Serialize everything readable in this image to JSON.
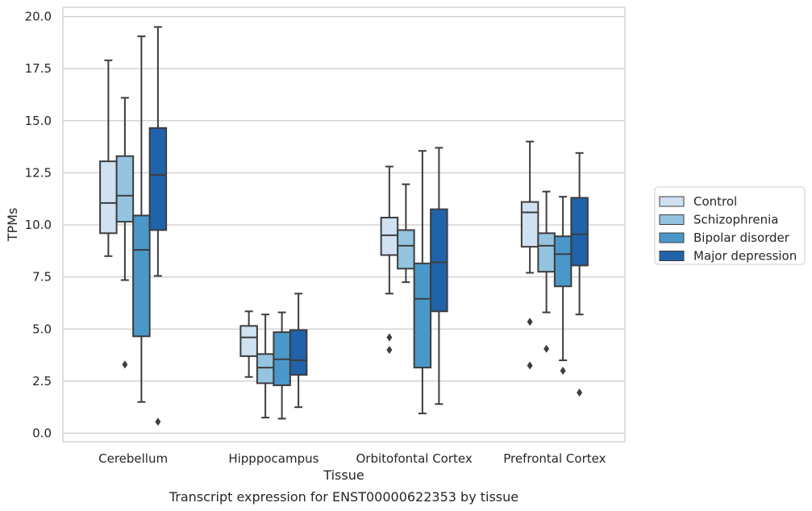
{
  "caption": "Transcript expression for ENST00000622353 by tissue",
  "chart_data": {
    "type": "box",
    "xlabel": "Tissue",
    "ylabel": "TPMs",
    "ylim": [
      -0.4,
      20.4
    ],
    "yticks": [
      "0.0",
      "2.5",
      "5.0",
      "7.5",
      "10.0",
      "12.5",
      "15.0",
      "17.5",
      "20.0"
    ],
    "grid": "horizontal",
    "legend_position": "right",
    "categories": [
      "Cerebellum",
      "Hipppocampus",
      "Orbitofontal Cortex",
      "Prefrontal Cortex"
    ],
    "series": [
      {
        "name": "Control",
        "color": "#d0e1f2",
        "boxes": [
          {
            "whisker_low": 8.5,
            "q1": 9.6,
            "median": 11.05,
            "q3": 13.05,
            "whisker_high": 17.9,
            "outliers": []
          },
          {
            "whisker_low": 2.7,
            "q1": 3.7,
            "median": 4.6,
            "q3": 5.15,
            "whisker_high": 5.85,
            "outliers": []
          },
          {
            "whisker_low": 6.7,
            "q1": 8.55,
            "median": 9.5,
            "q3": 10.35,
            "whisker_high": 12.8,
            "outliers": [
              4.6,
              4.0
            ]
          },
          {
            "whisker_low": 7.7,
            "q1": 8.95,
            "median": 10.6,
            "q3": 11.1,
            "whisker_high": 14.0,
            "outliers": [
              5.35,
              3.25
            ]
          }
        ]
      },
      {
        "name": "Schizophrenia",
        "color": "#94c4df",
        "boxes": [
          {
            "whisker_low": 7.35,
            "q1": 10.15,
            "median": 11.4,
            "q3": 13.3,
            "whisker_high": 16.1,
            "outliers": [
              3.3
            ]
          },
          {
            "whisker_low": 0.75,
            "q1": 2.4,
            "median": 3.15,
            "q3": 3.8,
            "whisker_high": 5.7,
            "outliers": []
          },
          {
            "whisker_low": 7.25,
            "q1": 7.9,
            "median": 9.0,
            "q3": 9.75,
            "whisker_high": 11.95,
            "outliers": []
          },
          {
            "whisker_low": 5.8,
            "q1": 7.75,
            "median": 9.0,
            "q3": 9.6,
            "whisker_high": 11.6,
            "outliers": [
              4.05
            ]
          }
        ]
      },
      {
        "name": "Bipolar disorder",
        "color": "#4a98c9",
        "boxes": [
          {
            "whisker_low": 1.5,
            "q1": 4.65,
            "median": 8.8,
            "q3": 10.45,
            "whisker_high": 19.05,
            "outliers": []
          },
          {
            "whisker_low": 0.7,
            "q1": 2.3,
            "median": 3.55,
            "q3": 4.85,
            "whisker_high": 5.8,
            "outliers": []
          },
          {
            "whisker_low": 0.95,
            "q1": 3.15,
            "median": 6.45,
            "q3": 8.15,
            "whisker_high": 13.55,
            "outliers": []
          },
          {
            "whisker_low": 3.5,
            "q1": 7.05,
            "median": 8.6,
            "q3": 9.45,
            "whisker_high": 11.35,
            "outliers": [
              3.0
            ]
          }
        ]
      },
      {
        "name": "Major depression",
        "color": "#2163aa",
        "boxes": [
          {
            "whisker_low": 7.55,
            "q1": 9.75,
            "median": 12.4,
            "q3": 14.65,
            "whisker_high": 19.5,
            "outliers": [
              0.55
            ]
          },
          {
            "whisker_low": 1.25,
            "q1": 2.8,
            "median": 3.5,
            "q3": 4.95,
            "whisker_high": 6.7,
            "outliers": []
          },
          {
            "whisker_low": 1.4,
            "q1": 5.85,
            "median": 8.2,
            "q3": 10.75,
            "whisker_high": 13.7,
            "outliers": []
          },
          {
            "whisker_low": 5.7,
            "q1": 8.05,
            "median": 9.55,
            "q3": 11.3,
            "whisker_high": 13.45,
            "outliers": [
              1.95
            ]
          }
        ]
      }
    ]
  }
}
